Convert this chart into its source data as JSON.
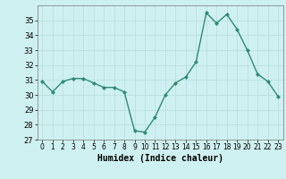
{
  "x": [
    0,
    1,
    2,
    3,
    4,
    5,
    6,
    7,
    8,
    9,
    10,
    11,
    12,
    13,
    14,
    15,
    16,
    17,
    18,
    19,
    20,
    21,
    22,
    23
  ],
  "y": [
    30.9,
    30.2,
    30.9,
    31.1,
    31.1,
    30.8,
    30.5,
    30.5,
    30.2,
    27.6,
    27.5,
    28.5,
    30.0,
    30.8,
    31.2,
    32.2,
    35.5,
    34.8,
    35.4,
    34.4,
    33.0,
    31.4,
    30.9,
    29.9
  ],
  "xlabel": "Humidex (Indice chaleur)",
  "xlim": [
    -0.5,
    23.5
  ],
  "ylim": [
    27,
    36
  ],
  "yticks": [
    27,
    28,
    29,
    30,
    31,
    32,
    33,
    34,
    35
  ],
  "xticks": [
    0,
    1,
    2,
    3,
    4,
    5,
    6,
    7,
    8,
    9,
    10,
    11,
    12,
    13,
    14,
    15,
    16,
    17,
    18,
    19,
    20,
    21,
    22,
    23
  ],
  "line_color": "#2e8b74",
  "marker_color": "#2e8b74",
  "bg_color": "#cff0f0",
  "grid_color": "#b8dede"
}
